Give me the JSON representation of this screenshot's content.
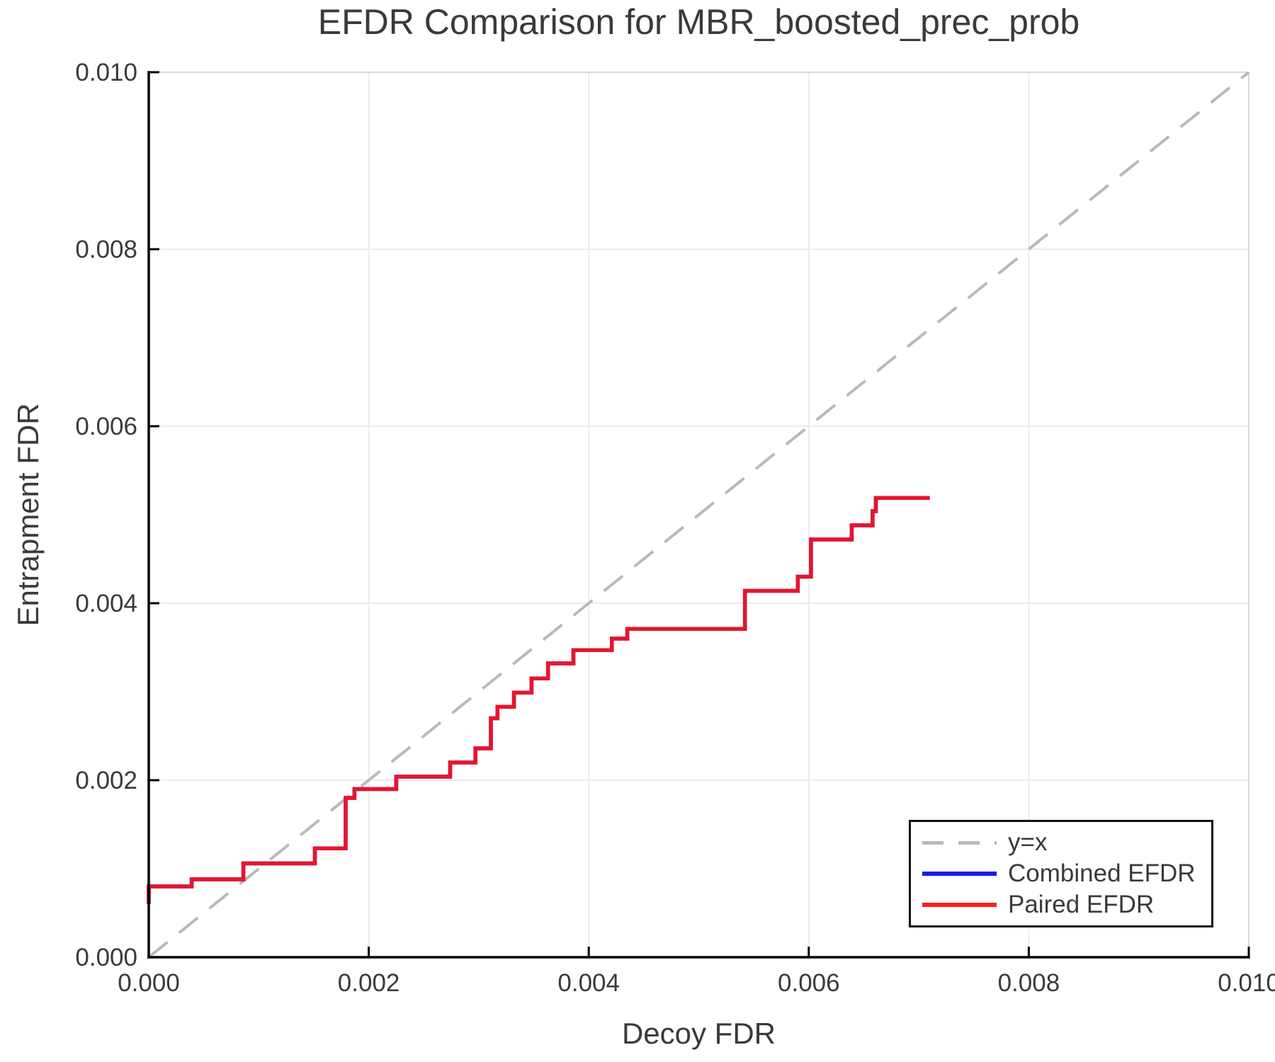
{
  "page": {
    "background": "#ffffff"
  },
  "chart_data": {
    "type": "line",
    "title": "EFDR Comparison for MBR_boosted_prec_prob",
    "xlabel": "Decoy FDR",
    "ylabel": "Entrapment FDR",
    "xlim": [
      0.0,
      0.01
    ],
    "ylim": [
      0.0,
      0.01
    ],
    "xticks": {
      "values": [
        0.0,
        0.002,
        0.004,
        0.006,
        0.008,
        0.01
      ],
      "labels": [
        "0.000",
        "0.002",
        "0.004",
        "0.006",
        "0.008",
        "0.010"
      ]
    },
    "yticks": {
      "values": [
        0.0,
        0.002,
        0.004,
        0.006,
        0.008,
        0.01
      ],
      "labels": [
        "0.000",
        "0.002",
        "0.004",
        "0.006",
        "0.008",
        "0.010"
      ]
    },
    "grid": true,
    "legend": {
      "position": "lower-right",
      "entries": [
        "y=x",
        "Combined EFDR",
        "Paired EFDR"
      ]
    },
    "style": {
      "text_color": "#3a3a3a",
      "axis_color": "#000000",
      "box_color": "#d9d9d9",
      "grid_color": "#ebebeb",
      "diagonal_color": "#b9b9b9",
      "combined_color": "#1a1aec",
      "paired_color": "#e8142d",
      "legend_red": "#fb1f1f",
      "legend_blue": "#1a1aec"
    },
    "series": [
      {
        "name": "y=x",
        "style": "dashed",
        "color": "#b9b9b9",
        "points": [
          [
            0.0,
            0.0
          ],
          [
            0.01,
            0.01
          ]
        ]
      },
      {
        "name": "Combined EFDR",
        "style": "solid",
        "color": "#1a1aec",
        "note": "fully hidden beneath Paired EFDR curve (identical trace)",
        "points_same_as": "Paired EFDR"
      },
      {
        "name": "Paired EFDR",
        "style": "solid",
        "color": "#e8142d",
        "points": [
          [
            0.0,
            0.0006
          ],
          [
            0.0,
            0.0008
          ],
          [
            0.00039,
            0.0008
          ],
          [
            0.00039,
            0.00088
          ],
          [
            0.00086,
            0.00088
          ],
          [
            0.00086,
            0.00106
          ],
          [
            0.00151,
            0.00106
          ],
          [
            0.00151,
            0.00123
          ],
          [
            0.00179,
            0.00123
          ],
          [
            0.00179,
            0.0018
          ],
          [
            0.00187,
            0.0018
          ],
          [
            0.00187,
            0.0019
          ],
          [
            0.00225,
            0.0019
          ],
          [
            0.00225,
            0.00204
          ],
          [
            0.00274,
            0.00204
          ],
          [
            0.00274,
            0.0022
          ],
          [
            0.00297,
            0.0022
          ],
          [
            0.00297,
            0.00236
          ],
          [
            0.00311,
            0.00236
          ],
          [
            0.00311,
            0.0027
          ],
          [
            0.00317,
            0.0027
          ],
          [
            0.00317,
            0.00283
          ],
          [
            0.00332,
            0.00283
          ],
          [
            0.00332,
            0.00299
          ],
          [
            0.00348,
            0.00299
          ],
          [
            0.00348,
            0.00315
          ],
          [
            0.00363,
            0.00315
          ],
          [
            0.00363,
            0.00332
          ],
          [
            0.00386,
            0.00332
          ],
          [
            0.00386,
            0.00347
          ],
          [
            0.00421,
            0.00347
          ],
          [
            0.00421,
            0.0036
          ],
          [
            0.00435,
            0.0036
          ],
          [
            0.00435,
            0.00371
          ],
          [
            0.00542,
            0.00371
          ],
          [
            0.00542,
            0.00414
          ],
          [
            0.0059,
            0.00414
          ],
          [
            0.0059,
            0.0043
          ],
          [
            0.00602,
            0.0043
          ],
          [
            0.00602,
            0.00472
          ],
          [
            0.00639,
            0.00472
          ],
          [
            0.00639,
            0.00488
          ],
          [
            0.00658,
            0.00488
          ],
          [
            0.00658,
            0.00504
          ],
          [
            0.00661,
            0.00504
          ],
          [
            0.00661,
            0.00519
          ],
          [
            0.0071,
            0.00519
          ]
        ]
      }
    ]
  }
}
